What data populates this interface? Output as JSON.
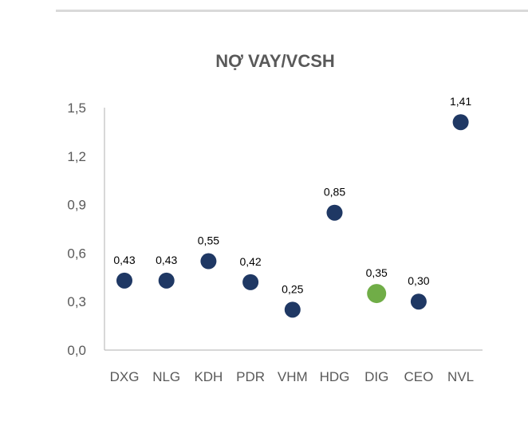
{
  "chart_data": {
    "type": "scatter",
    "title": "NỢ VAY/VCSH",
    "categories": [
      "DXG",
      "NLG",
      "KDH",
      "PDR",
      "VHM",
      "HDG",
      "DIG",
      "CEO",
      "NVL"
    ],
    "values": [
      0.43,
      0.43,
      0.55,
      0.42,
      0.25,
      0.85,
      0.35,
      0.3,
      1.41
    ],
    "data_labels": [
      "0,43",
      "0,43",
      "0,55",
      "0,42",
      "0,25",
      "0,85",
      "0,35",
      "0,30",
      "1,41"
    ],
    "highlight_category": "DIG",
    "y_ticks": [
      "0,0",
      "0,3",
      "0,6",
      "0,9",
      "1,2",
      "1,5"
    ],
    "ylim": [
      0,
      1.5
    ],
    "grid": false,
    "legend": "none",
    "colors": {
      "point": "#1f3864",
      "highlight": "#70ad47",
      "axis": "#bfbfbf",
      "text": "#595959"
    }
  }
}
